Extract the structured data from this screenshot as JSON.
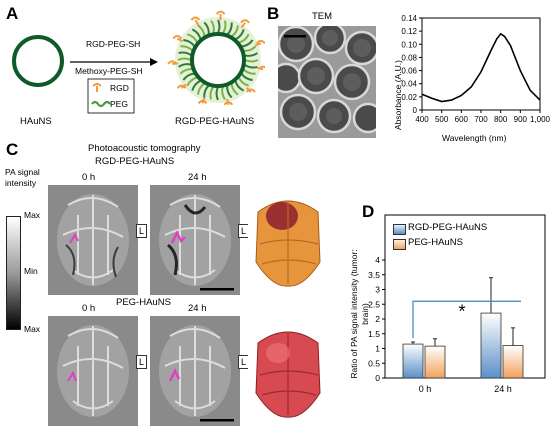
{
  "panelA": {
    "letter": "A",
    "left_label": "HAuNS",
    "arrow_top": "RGD-PEG-SH",
    "arrow_bottom": "Methoxy-PEG-SH",
    "legend_rgd": "RGD",
    "legend_peg": "PEG",
    "right_label": "RGD-PEG-HAuNS"
  },
  "panelB": {
    "letter": "B",
    "tem_label": "TEM",
    "spectrum": {
      "ylabel": "Absorbance (A.U.)",
      "xlabel": "Wavelength (nm)",
      "x_ticks": [
        "400",
        "500",
        "600",
        "700",
        "800",
        "900",
        "1,000"
      ],
      "y_ticks": [
        "0",
        "0.02",
        "0.04",
        "0.06",
        "0.08",
        "0.10",
        "0.12",
        "0.14"
      ],
      "xlim": [
        400,
        1000
      ],
      "ylim": [
        0,
        0.14
      ],
      "x": [
        400,
        450,
        500,
        550,
        600,
        650,
        700,
        750,
        780,
        800,
        820,
        850,
        900,
        950,
        1000
      ],
      "y": [
        0.024,
        0.018,
        0.013,
        0.015,
        0.022,
        0.035,
        0.058,
        0.09,
        0.108,
        0.116,
        0.112,
        0.098,
        0.06,
        0.03,
        0.015
      ]
    }
  },
  "panelC": {
    "letter": "C",
    "title1": "Photoacoustic tomography",
    "title2": "RGD-PEG-HAuNS",
    "row2_title": "PEG-HAuNS",
    "time_0": "0 h",
    "time_24": "24 h",
    "side_label": "L",
    "scale_title": "PA signal intensity",
    "scale_max_top": "Max",
    "scale_min": "Min",
    "scale_max_bottom": "Max"
  },
  "panelD": {
    "letter": "D",
    "chart_data": {
      "type": "bar",
      "categories": [
        "0 h",
        "24 h"
      ],
      "series": [
        {
          "name": "RGD-PEG-HAuNS",
          "values": [
            1.15,
            2.2
          ],
          "errors": [
            0.07,
            1.2
          ]
        },
        {
          "name": "PEG-HAuNS",
          "values": [
            1.08,
            1.1
          ],
          "errors": [
            0.25,
            0.6
          ]
        }
      ],
      "ylabel": "Ratio of PA signal intensity (tumor: brain)",
      "y_ticks": [
        "0",
        "0.5",
        "1",
        "1.5",
        "2",
        "2.5",
        "3",
        "3.5",
        "4"
      ],
      "ylim": [
        0,
        4
      ],
      "significance": "*",
      "colors": {
        "rgd": "#5b8fc7",
        "peg": "#f2a25c"
      }
    }
  }
}
